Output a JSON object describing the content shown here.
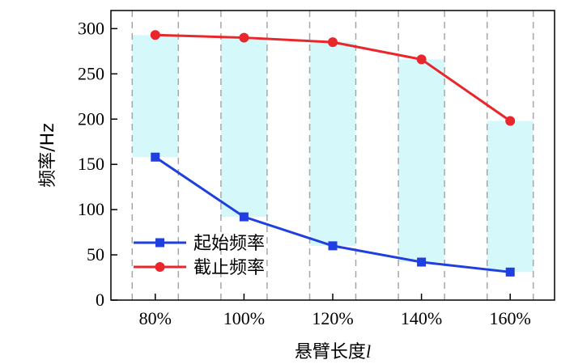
{
  "chart_data": {
    "type": "line",
    "categories": [
      "80%",
      "100%",
      "120%",
      "140%",
      "160%"
    ],
    "series": [
      {
        "name": "起始频率",
        "values": [
          158,
          92,
          60,
          42,
          31
        ],
        "color": "#1f3fe0",
        "marker": "square"
      },
      {
        "name": "截止频率",
        "values": [
          293,
          290,
          285,
          266,
          198
        ],
        "color": "#e8262b",
        "marker": "circle"
      }
    ],
    "bands": {
      "color": "#d5f8fb"
    },
    "xlabel": "悬臂长度",
    "xlabel_italic_suffix": "l",
    "ylabel": "频率/Hz",
    "ylim": [
      0,
      320
    ],
    "yticks": [
      0,
      50,
      100,
      150,
      200,
      250,
      300
    ],
    "grid": {
      "vertical_dashed": true,
      "color": "#a6a6a6"
    },
    "legend_position": "bottom-left"
  }
}
